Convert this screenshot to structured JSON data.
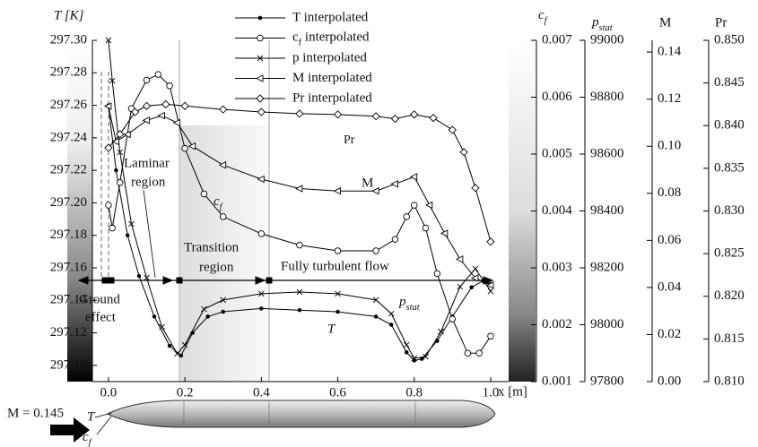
{
  "chart_data": {
    "type": "line",
    "xlabel": "x [m]",
    "xlim": [
      -0.042,
      1.047
    ],
    "xticks": [
      {
        "value": 0,
        "label": "0.0"
      },
      0.2,
      0.4,
      0.6,
      0.8,
      {
        "value": 1,
        "label": "1.0"
      }
    ],
    "axes": [
      {
        "label": "T [K]",
        "lim": [
          297.09,
          297.3
        ],
        "ticks": [
          {
            "value": 297.1,
            "label": "297.10"
          },
          297.12,
          297.14,
          297.16,
          297.18,
          {
            "value": 297.2,
            "label": "297.20"
          },
          297.22,
          297.24,
          297.26,
          297.28,
          {
            "value": 297.3,
            "label": "297.30"
          }
        ]
      },
      {
        "label": [
          "c",
          "f"
        ],
        "lim": [
          0.001,
          0.007
        ],
        "ticks": [
          0.001,
          0.002,
          0.003,
          0.004,
          0.005,
          0.006,
          0.007
        ]
      },
      {
        "label": [
          "p",
          "stat"
        ],
        "lim": [
          97800,
          99000
        ],
        "ticks": [
          97800,
          98000,
          98200,
          98400,
          98600,
          98800,
          99000
        ]
      },
      {
        "label": "M",
        "lim": [
          0,
          0.145
        ],
        "ticks": [
          {
            "value": 0,
            "label": "0.00"
          },
          0.02,
          0.04,
          0.06,
          0.08,
          {
            "value": 0.1,
            "label": "0.10"
          },
          0.12,
          0.14
        ]
      },
      {
        "label": "Pr",
        "lim": [
          0.81,
          0.85
        ],
        "ticks": [
          {
            "value": 0.81,
            "label": "0.810"
          },
          0.815,
          {
            "value": 0.82,
            "label": "0.820"
          },
          0.825,
          {
            "value": 0.83,
            "label": "0.830"
          },
          0.835,
          {
            "value": 0.84,
            "label": "0.840"
          },
          0.845,
          {
            "value": 0.85,
            "label": "0.850"
          }
        ]
      }
    ],
    "series": [
      {
        "name": "T interpolated",
        "color": "#000000",
        "marker": "dot",
        "axis": 0,
        "x": [
          0,
          0.02,
          0.05,
          0.08,
          0.12,
          0.16,
          0.19,
          0.22,
          0.26,
          0.3,
          0.4,
          0.5,
          0.6,
          0.7,
          0.74,
          0.78,
          0.8,
          0.82,
          0.86,
          0.9,
          0.95,
          0.98,
          1.0
        ],
        "values": [
          297.26,
          297.22,
          297.18,
          297.155,
          297.13,
          297.112,
          297.106,
          297.12,
          297.13,
          297.133,
          297.135,
          297.134,
          297.133,
          297.13,
          297.125,
          297.108,
          297.103,
          297.104,
          297.115,
          297.13,
          297.148,
          297.152,
          297.15
        ]
      },
      {
        "name": [
          "c",
          "f",
          " interpolated"
        ],
        "color": "#000000",
        "marker": "circle",
        "axis": 1,
        "x": [
          0,
          0.01,
          0.03,
          0.06,
          0.1,
          0.13,
          0.16,
          0.2,
          0.25,
          0.3,
          0.4,
          0.5,
          0.6,
          0.7,
          0.75,
          0.78,
          0.8,
          0.83,
          0.86,
          0.9,
          0.94,
          0.97,
          1.0
        ],
        "values": [
          0.0041,
          0.0037,
          0.0045,
          0.0058,
          0.0063,
          0.0064,
          0.0062,
          0.0051,
          0.0043,
          0.0039,
          0.0036,
          0.0034,
          0.0033,
          0.0033,
          0.0035,
          0.0039,
          0.0041,
          0.0037,
          0.0029,
          0.0021,
          0.0015,
          0.0015,
          0.0018
        ]
      },
      {
        "name": "p interpolated",
        "color": "#000000",
        "marker": "cross",
        "axis": 2,
        "x": [
          0,
          0.01,
          0.03,
          0.06,
          0.1,
          0.14,
          0.18,
          0.2,
          0.25,
          0.3,
          0.4,
          0.5,
          0.6,
          0.7,
          0.74,
          0.78,
          0.8,
          0.83,
          0.87,
          0.92,
          0.96,
          1.0
        ],
        "values": [
          99000,
          98858,
          98606,
          98354,
          98165,
          97992,
          97898,
          97929,
          98055,
          98087,
          98109,
          98115,
          98109,
          98087,
          98039,
          97929,
          97882,
          97888,
          97976,
          98134,
          98197,
          98118
        ]
      },
      {
        "name": "M interpolated",
        "color": "#000000",
        "marker": "triangle",
        "axis": 3,
        "x": [
          0,
          0.02,
          0.05,
          0.1,
          0.14,
          0.18,
          0.22,
          0.3,
          0.4,
          0.5,
          0.6,
          0.7,
          0.75,
          0.8,
          0.84,
          0.88,
          0.92,
          0.96,
          1.0
        ],
        "values": [
          0.117,
          0.102,
          0.105,
          0.111,
          0.113,
          0.11,
          0.1,
          0.092,
          0.086,
          0.082,
          0.081,
          0.081,
          0.084,
          0.087,
          0.075,
          0.063,
          0.052,
          0.044,
          0.041
        ]
      },
      {
        "name": "Pr interpolated",
        "color": "#000000",
        "marker": "diamond",
        "axis": 4,
        "x": [
          0,
          0.03,
          0.07,
          0.1,
          0.15,
          0.2,
          0.3,
          0.4,
          0.5,
          0.6,
          0.7,
          0.75,
          0.8,
          0.85,
          0.9,
          0.93,
          0.96,
          1.0
        ],
        "values": [
          0.8374,
          0.839,
          0.8416,
          0.8423,
          0.8425,
          0.8423,
          0.8419,
          0.8416,
          0.8414,
          0.8413,
          0.8411,
          0.8408,
          0.8413,
          0.8409,
          0.8395,
          0.8369,
          0.8327,
          0.8264
        ]
      }
    ],
    "annotations": {
      "laminar": [
        "Laminar",
        "region"
      ],
      "transition": [
        "Transition",
        "region"
      ],
      "turbulent": "Fully turbulent flow",
      "ground": [
        "Ground",
        "effect"
      ],
      "curve_pr": "Pr",
      "curve_m": "M",
      "curve_cf": [
        "c",
        "f"
      ],
      "curve_p": [
        "p",
        "stat"
      ],
      "curve_t": "T",
      "freestream": "M = 0.145",
      "body_t": "T",
      "body_cf": [
        "c",
        "f"
      ]
    }
  }
}
